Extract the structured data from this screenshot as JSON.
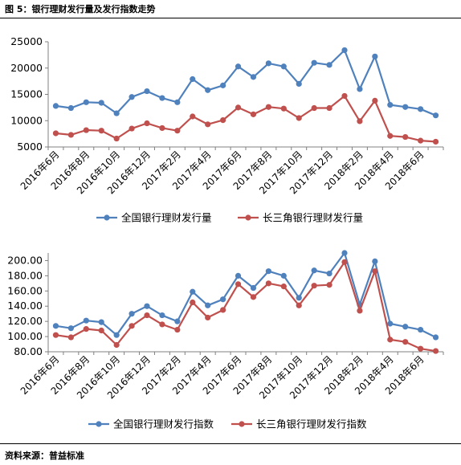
{
  "figure_title": "图 5：银行理财发行量及发行指数走势",
  "source_text": "资料来源：普益标准",
  "colors": {
    "blue": "#4F81BD",
    "red": "#C0504D",
    "axis": "#808080"
  },
  "chart_data": [
    {
      "type": "line",
      "title": "",
      "xlabel": "",
      "ylabel": "",
      "ylim": [
        5000,
        25000
      ],
      "yticks": [
        "5000",
        "10000",
        "15000",
        "20000",
        "25000"
      ],
      "xtick_labels": [
        "2016年6月",
        "2016年8月",
        "2016年10月",
        "2016年12月",
        "2017年2月",
        "2017年4月",
        "2017年6月",
        "2017年8月",
        "2017年10月",
        "2017年12月",
        "2018年2月",
        "2018年4月",
        "2018年6月"
      ],
      "grid": false,
      "legend_position": "bottom",
      "series": [
        {
          "name": "全国银行理财发行量",
          "color": "#4F81BD",
          "values": [
            12800,
            12400,
            13500,
            13400,
            11400,
            14500,
            15600,
            14300,
            13500,
            17900,
            15800,
            16700,
            20300,
            18300,
            20900,
            20300,
            17000,
            21000,
            20600,
            23400,
            16000,
            22200,
            13000,
            12600,
            12200,
            11000
          ]
        },
        {
          "name": "长三角银行理财发行量",
          "color": "#C0504D",
          "values": [
            7600,
            7300,
            8200,
            8100,
            6600,
            8500,
            9500,
            8600,
            8100,
            10800,
            9300,
            10100,
            12500,
            11200,
            12600,
            12300,
            10500,
            12400,
            12400,
            14700,
            9900,
            13800,
            7100,
            6900,
            6200,
            6000
          ]
        }
      ]
    },
    {
      "type": "line",
      "title": "",
      "xlabel": "",
      "ylabel": "",
      "ylim": [
        80,
        210
      ],
      "yticks": [
        "80.00",
        "100.00",
        "120.00",
        "140.00",
        "160.00",
        "180.00",
        "200.00"
      ],
      "xtick_labels": [
        "2016年6月",
        "2016年8月",
        "2016年10月",
        "2016年12月",
        "2017年2月",
        "2017年4月",
        "2017年6月",
        "2017年8月",
        "2017年10月",
        "2017年12月",
        "2018年2月",
        "2018年4月",
        "2018年6月"
      ],
      "grid": false,
      "legend_position": "bottom",
      "series": [
        {
          "name": "全国银行理财发行指数",
          "color": "#4F81BD",
          "values": [
            114,
            111,
            121,
            119,
            102,
            130,
            140,
            128,
            120,
            159,
            141,
            149,
            180,
            164,
            186,
            180,
            151,
            187,
            183,
            210,
            142,
            199,
            117,
            113,
            109,
            99
          ]
        },
        {
          "name": "长三角银行理财发行指数",
          "color": "#C0504D",
          "values": [
            102,
            99,
            110,
            108,
            89,
            114,
            128,
            116,
            109,
            145,
            125,
            135,
            169,
            152,
            170,
            166,
            141,
            167,
            168,
            198,
            134,
            186,
            96,
            93,
            84,
            81
          ]
        }
      ]
    }
  ]
}
